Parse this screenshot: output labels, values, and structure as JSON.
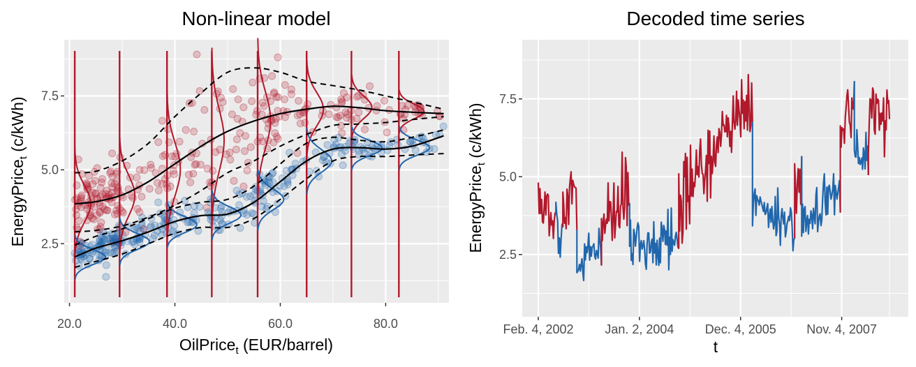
{
  "colors": {
    "state_high": "#b2182b",
    "state_low": "#2166ac",
    "panel_bg": "#ebebeb",
    "grid": "#ffffff",
    "smooth": "#000000"
  },
  "left": {
    "title": "Non-linear model",
    "xlabel_main": "OilPrice",
    "xlabel_sub": "t",
    "xlabel_rest": " (EUR/barrel)",
    "ylabel_main": "EnergyPrice",
    "ylabel_sub": "t",
    "ylabel_rest": " (c/kWh)",
    "xticks": [
      "20.0",
      "40.0",
      "60.0",
      "80.0"
    ],
    "yticks": [
      "2.5",
      "5.0",
      "7.5"
    ]
  },
  "right": {
    "title": "Decoded time series",
    "xlabel": "t",
    "ylabel_main": "EnergyPrice",
    "ylabel_sub": "t",
    "ylabel_rest": " (c/kWh)",
    "xticks": [
      "Feb. 4, 2002",
      "Jan. 2, 2004",
      "Dec. 4, 2005",
      "Nov. 4, 2007"
    ],
    "yticks": [
      "2.5",
      "5.0",
      "7.5"
    ]
  },
  "chart_data": [
    {
      "type": "scatter",
      "title": "Non-linear model",
      "xlabel": "OilPrice_t (EUR/barrel)",
      "ylabel": "EnergyPrice_t (c/kWh)",
      "xlim": [
        19,
        92
      ],
      "ylim": [
        0.5,
        9.4
      ],
      "grid": true,
      "legend": "none",
      "series": [
        {
          "state": "high",
          "mean_curve": {
            "x": [
              21,
              25,
              30,
              35,
              40,
              45,
              50,
              55,
              60,
              65,
              70,
              75,
              80,
              85,
              91
            ],
            "y": [
              3.85,
              3.92,
              4.15,
              4.6,
              5.2,
              5.8,
              6.3,
              6.65,
              6.9,
              7.05,
              7.15,
              7.1,
              7.0,
              6.95,
              6.9
            ]
          },
          "upper_band": [
            4.9,
            4.95,
            5.3,
            5.9,
            6.8,
            7.6,
            8.3,
            8.45,
            8.3,
            8.0,
            7.85,
            7.7,
            7.5,
            7.3,
            7.05
          ],
          "lower_band": [
            2.9,
            2.95,
            3.1,
            3.4,
            3.8,
            4.3,
            4.9,
            5.3,
            5.8,
            6.2,
            6.5,
            6.55,
            6.6,
            6.7,
            6.8
          ]
        },
        {
          "state": "low",
          "mean_curve": {
            "x": [
              21,
              25,
              30,
              35,
              40,
              45,
              50,
              55,
              60,
              65,
              70,
              75,
              80,
              85,
              91
            ],
            "y": [
              2.05,
              2.35,
              2.6,
              2.9,
              3.25,
              3.45,
              3.5,
              3.9,
              4.6,
              5.3,
              5.7,
              5.75,
              5.7,
              5.8,
              6.15
            ]
          },
          "upper_band": [
            2.45,
            2.75,
            3.0,
            3.35,
            3.7,
            3.9,
            4.0,
            4.45,
            5.2,
            5.9,
            6.1,
            6.0,
            5.95,
            6.1,
            6.35
          ],
          "lower_band": [
            1.7,
            1.9,
            2.15,
            2.5,
            2.85,
            3.05,
            3.05,
            3.35,
            4.0,
            4.7,
            5.3,
            5.45,
            5.45,
            5.5,
            5.55
          ]
        }
      ],
      "density_lines_x": [
        21,
        29.5,
        38.5,
        47,
        55.7,
        65,
        73.5,
        82.5
      ]
    },
    {
      "type": "line",
      "title": "Decoded time series",
      "xlabel": "t",
      "ylabel": "EnergyPrice_t (c/kWh)",
      "x_ticks": [
        "Feb. 4, 2002",
        "Jan. 2, 2004",
        "Dec. 4, 2005",
        "Nov. 4, 2007"
      ],
      "ylim": [
        0.5,
        9.4
      ],
      "grid": true,
      "segments": [
        {
          "state": "high",
          "t": [
            0,
            0.05
          ],
          "level": [
            4.3,
            3.9
          ]
        },
        {
          "state": "low",
          "t": [
            0.05,
            0.07
          ],
          "level": [
            3.3,
            3.3
          ]
        },
        {
          "state": "high",
          "t": [
            0.07,
            0.11
          ],
          "level": [
            3.9,
            4.6
          ]
        },
        {
          "state": "low",
          "t": [
            0.11,
            0.18
          ],
          "level": [
            1.9,
            2.5
          ]
        },
        {
          "state": "high",
          "t": [
            0.18,
            0.26
          ],
          "level": [
            3.7,
            4.2
          ]
        },
        {
          "state": "low",
          "t": [
            0.26,
            0.4
          ],
          "level": [
            2.6,
            3.0
          ]
        },
        {
          "state": "high",
          "t": [
            0.4,
            0.61
          ],
          "level": [
            4.2,
            7.5
          ]
        },
        {
          "state": "low",
          "t": [
            0.61,
            0.73
          ],
          "level": [
            4.3,
            3.2
          ]
        },
        {
          "state": "high",
          "t": [
            0.73,
            0.75
          ],
          "level": [
            4.8,
            4.7
          ]
        },
        {
          "state": "low",
          "t": [
            0.75,
            0.86
          ],
          "level": [
            3.5,
            4.6
          ]
        },
        {
          "state": "high",
          "t": [
            0.86,
            0.9
          ],
          "level": [
            6.6,
            7.2
          ]
        },
        {
          "state": "low",
          "t": [
            0.9,
            0.94
          ],
          "level": [
            6.2,
            5.4
          ]
        },
        {
          "state": "high",
          "t": [
            0.94,
            1.0
          ],
          "level": [
            6.9,
            7.0
          ]
        }
      ]
    }
  ]
}
